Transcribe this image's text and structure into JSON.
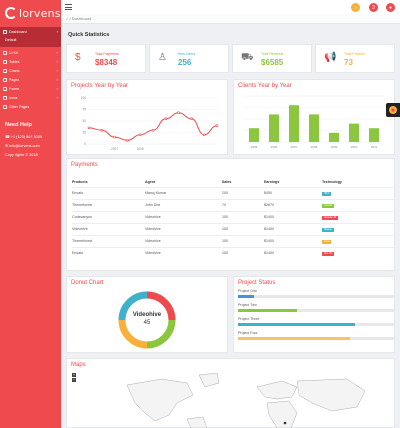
{
  "app": {
    "logo_text": "lorvens"
  },
  "sidebar": {
    "items": [
      {
        "label": "Dashboard",
        "icon": "dashboard-icon",
        "arrow": "›"
      },
      {
        "label": "UI Kit",
        "icon": "layers-icon",
        "arrow": "›"
      },
      {
        "label": "Tables",
        "icon": "table-icon",
        "arrow": "›"
      },
      {
        "label": "Charts",
        "icon": "chart-icon",
        "arrow": "›"
      },
      {
        "label": "Pages",
        "icon": "pages-icon",
        "arrow": "›"
      },
      {
        "label": "Forms",
        "icon": "forms-icon",
        "arrow": "›"
      },
      {
        "label": "Icons",
        "icon": "icons-icon",
        "arrow": "›"
      },
      {
        "label": "Other Pages",
        "icon": "file-icon",
        "arrow": ""
      }
    ],
    "sub_default": "Default",
    "help_title": "Need Help",
    "phone": "+1 (123) 867-5309",
    "email": "info@lorvens.com",
    "copyright": "Copy rights © 2018"
  },
  "topbar": {
    "badge_count": "3"
  },
  "breadcrumb": {
    "current": "Dashboard"
  },
  "quick_stats": {
    "title": "Quick Statistics",
    "cards": [
      {
        "label": "Total Payments",
        "value": "$8348",
        "icon": "dollar-icon",
        "color": "#ef4b4f"
      },
      {
        "label": "New Users",
        "value": "256",
        "icon": "user-icon",
        "color": "#3fb1cc"
      },
      {
        "label": "Total Revenue",
        "value": "$6585",
        "icon": "cart-icon",
        "color": "#8cc63e"
      },
      {
        "label": "Total Projects",
        "value": "73",
        "icon": "megaphone-icon",
        "color": "#f6b03b"
      }
    ]
  },
  "projects_chart": {
    "title": "Projects Year by Year",
    "chart_data": {
      "type": "line",
      "x": [
        2005,
        2006,
        2007,
        2008,
        2009,
        2010,
        2011,
        2012,
        2013,
        2014,
        2015
      ],
      "values": [
        35,
        30,
        15,
        8,
        20,
        30,
        55,
        68,
        55,
        20,
        40
      ],
      "yticks": [
        "100",
        "75",
        "50",
        "25",
        "0"
      ],
      "xticks": [
        "2007",
        "2009"
      ],
      "ylim": [
        0,
        100
      ],
      "color": "#ef4b4f"
    }
  },
  "clients_chart": {
    "title": "Clients Year by Year",
    "chart_data": {
      "type": "bar",
      "categories": [
        "2005",
        "2006",
        "2007",
        "2008",
        "2009",
        "2010",
        "2011"
      ],
      "values": [
        30,
        60,
        80,
        60,
        20,
        40,
        30
      ],
      "ylim": [
        0,
        100
      ],
      "color": "#8cc63e"
    }
  },
  "payments": {
    "title": "Payments",
    "columns": [
      "Products",
      "Agent",
      "Sales",
      "Earnings",
      "Technology"
    ],
    "rows": [
      {
        "product": "Envato",
        "agent": "Manoj Kumar",
        "sales": "200",
        "earnings": "$450",
        "tech": "Html",
        "tech_color": "#3fb1cc"
      },
      {
        "product": "Themeforest",
        "agent": "John Doe",
        "sales": "70",
        "earnings": "$2670",
        "tech": "Joomla",
        "tech_color": "#8cc63e"
      },
      {
        "product": "Codecanyon",
        "agent": "Videohive",
        "sales": "150",
        "earnings": "$1400",
        "tech": "Angular JS",
        "tech_color": "#ef4b4f"
      },
      {
        "product": "Videohive",
        "agent": "Videohive",
        "sales": "150",
        "earnings": "$1400",
        "tech": "Django",
        "tech_color": "#3fb1cc"
      },
      {
        "product": "Themeforest",
        "agent": "Videohive",
        "sales": "150",
        "earnings": "$1400",
        "tech": "Java",
        "tech_color": "#f6b03b"
      },
      {
        "product": "Envato",
        "agent": "Videohive",
        "sales": "150",
        "earnings": "$1400",
        "tech": "Vue JS",
        "tech_color": "#ef4b4f"
      }
    ]
  },
  "donut": {
    "title": "Donut Chart",
    "center_label": "Videohive",
    "center_value": "45",
    "chart_data": {
      "type": "pie",
      "values": [
        25,
        25,
        25,
        25
      ],
      "colors": [
        "#ef4b4f",
        "#8cc63e",
        "#f6b03b",
        "#3fb1cc"
      ]
    }
  },
  "project_status": {
    "title": "Project Status",
    "items": [
      {
        "label": "Project One",
        "percent": 10,
        "color": "#4a90e2"
      },
      {
        "label": "Project Two",
        "percent": 38,
        "color": "#8cc63e"
      },
      {
        "label": "Project Three",
        "percent": 75,
        "color": "#3fb1cc"
      },
      {
        "label": "Project Four",
        "percent": 72,
        "color": "#f6c26b"
      }
    ]
  },
  "maps": {
    "title": "Maps",
    "zoom_in": "+",
    "zoom_out": "−"
  }
}
